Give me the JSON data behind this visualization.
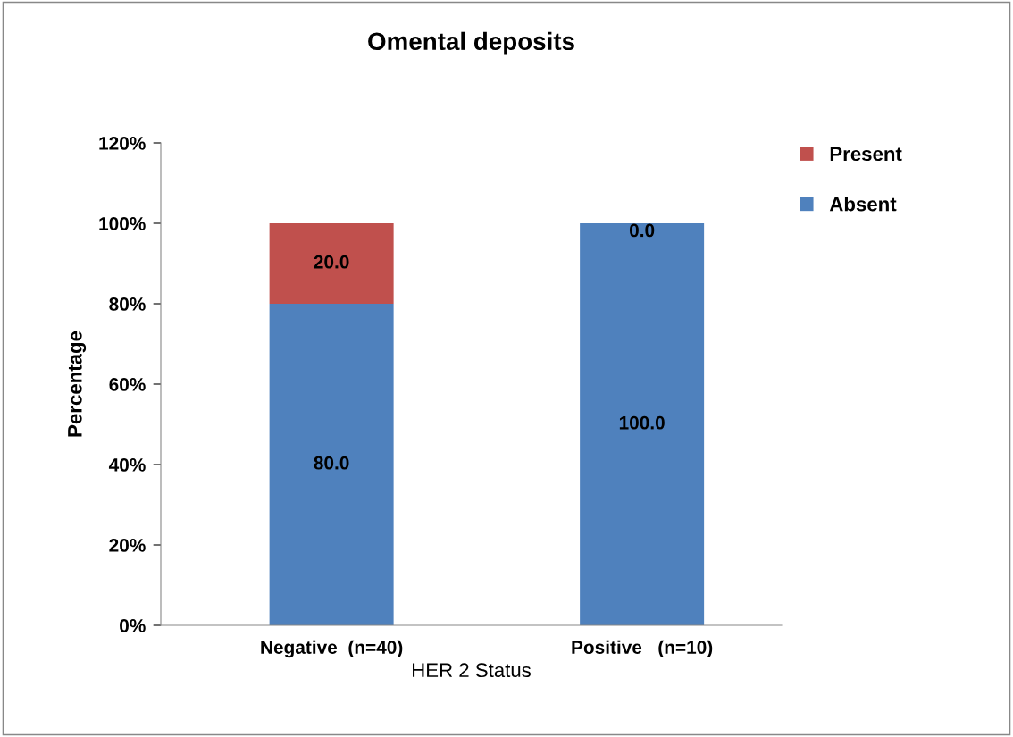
{
  "chart_data": {
    "type": "bar",
    "title": "Omental deposits",
    "xlabel": "HER 2 Status",
    "ylabel": "Percentage",
    "categories": [
      "Negative  (n=40)",
      "Positive   (n=10)"
    ],
    "stacked": true,
    "series": [
      {
        "name": "Absent",
        "color": "#4f81bd",
        "values": [
          80,
          100
        ],
        "value_labels": [
          "80.0",
          "100.0"
        ]
      },
      {
        "name": "Present",
        "color": "#c0504d",
        "values": [
          20,
          0
        ],
        "value_labels": [
          "20.0",
          "0.0"
        ]
      }
    ],
    "ylim": [
      0,
      120
    ],
    "yticks": [
      {
        "value": 0,
        "label": "0%"
      },
      {
        "value": 20,
        "label": "20%"
      },
      {
        "value": 40,
        "label": "40%"
      },
      {
        "value": 60,
        "label": "60%"
      },
      {
        "value": 80,
        "label": "80%"
      },
      {
        "value": 100,
        "label": "100%"
      },
      {
        "value": 120,
        "label": "120%"
      }
    ],
    "legend": "top right",
    "grid": false
  }
}
